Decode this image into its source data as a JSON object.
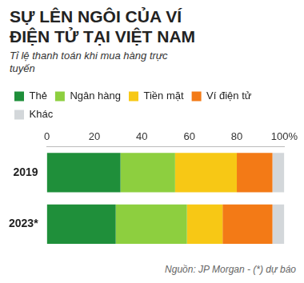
{
  "chart_data": {
    "type": "bar",
    "title": "SỰ LÊN NGÔI CỦA VÍ ĐIỆN TỬ TẠI VIỆT NAM",
    "subtitle": "Tỉ lệ thanh toán khi mua hàng trực tuyến",
    "source": "Nguồn: JP Morgan - (*) dự báo",
    "orientation": "horizontal",
    "stacked": true,
    "categories": [
      "2019",
      "2023*"
    ],
    "series": [
      {
        "name": "Thẻ",
        "color": "#1f8f3a",
        "values": [
          31,
          29
        ]
      },
      {
        "name": "Ngân hàng",
        "color": "#8dcf3f",
        "values": [
          23,
          30
        ]
      },
      {
        "name": "Tiền mặt",
        "color": "#f7c815",
        "values": [
          26,
          15
        ]
      },
      {
        "name": "Ví điện tử",
        "color": "#f37a16",
        "values": [
          15,
          21
        ]
      },
      {
        "name": "Khác",
        "color": "#d3d7da",
        "values": [
          5,
          5
        ]
      }
    ],
    "xlim": [
      0,
      100
    ],
    "xticks": [
      0,
      20,
      40,
      60,
      80,
      {
        "value": 100,
        "label": "100%"
      }
    ],
    "grid": false,
    "legend": "top"
  }
}
